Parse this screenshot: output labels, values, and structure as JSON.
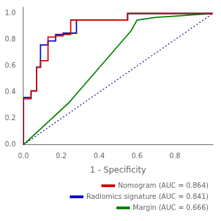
{
  "chart_data": {
    "type": "line",
    "xlabel": "1 - Specificity",
    "xlim": [
      0.0,
      1.0
    ],
    "ylim": [
      0.0,
      1.05
    ],
    "xticks": [
      {
        "value": 0.0,
        "label": "0.0"
      },
      0.2,
      0.4,
      0.6,
      0.8
    ],
    "yticks": [
      {
        "value": 0.0,
        "label": "0.0"
      },
      0.2,
      0.4,
      0.6,
      0.8,
      {
        "value": 1.0,
        "label": "1.0"
      }
    ],
    "grid": false,
    "legend": "lower right",
    "series": [
      {
        "color": "#00008B",
        "line_style": "dotted",
        "x": [
          0,
          1
        ],
        "values": [
          0,
          1
        ]
      },
      {
        "name": "Margin (AUC = 0.666)",
        "color": "#008000",
        "line_style": "solid",
        "x": [
          0.0,
          0.03,
          0.06,
          0.09,
          0.12,
          0.15,
          0.18,
          0.21,
          0.24,
          0.27,
          0.3,
          0.33,
          0.36,
          0.39,
          0.42,
          0.45,
          0.48,
          0.51,
          0.54,
          0.57,
          0.6,
          0.65,
          0.7,
          0.8,
          0.9,
          1.0
        ],
        "values": [
          0.0,
          0.04,
          0.08,
          0.12,
          0.16,
          0.2,
          0.24,
          0.28,
          0.32,
          0.37,
          0.42,
          0.47,
          0.52,
          0.57,
          0.62,
          0.67,
          0.72,
          0.77,
          0.82,
          0.87,
          0.95,
          0.96,
          0.97,
          0.98,
          0.99,
          1.0
        ]
      },
      {
        "name": "Radiomics signature (AUC = 0.841)",
        "color": "#0000cc",
        "line_style": "solid",
        "x": [
          0.0,
          0.0,
          0.04,
          0.04,
          0.07,
          0.07,
          0.09,
          0.09,
          0.13,
          0.13,
          0.17,
          0.17,
          0.21,
          0.21,
          0.28,
          0.28,
          0.35,
          0.35,
          0.55,
          0.55,
          1.0
        ],
        "values": [
          0.0,
          0.36,
          0.36,
          0.41,
          0.41,
          0.59,
          0.59,
          0.76,
          0.76,
          0.79,
          0.79,
          0.84,
          0.84,
          0.85,
          0.85,
          0.95,
          0.95,
          0.95,
          0.95,
          1.0,
          1.0
        ]
      },
      {
        "name": "Nomogram (AUC = 0.864)",
        "color": "#cc0000",
        "line_style": "solid",
        "x": [
          0.0,
          0.0,
          0.04,
          0.04,
          0.07,
          0.07,
          0.09,
          0.09,
          0.13,
          0.13,
          0.17,
          0.17,
          0.21,
          0.21,
          0.25,
          0.25,
          0.28,
          0.28,
          0.35,
          0.35,
          0.55,
          0.55,
          1.0
        ],
        "values": [
          0.0,
          0.35,
          0.35,
          0.41,
          0.41,
          0.59,
          0.59,
          0.64,
          0.64,
          0.82,
          0.82,
          0.83,
          0.83,
          0.84,
          0.84,
          0.95,
          0.95,
          0.95,
          0.95,
          0.95,
          0.95,
          1.0,
          1.0
        ]
      }
    ]
  }
}
